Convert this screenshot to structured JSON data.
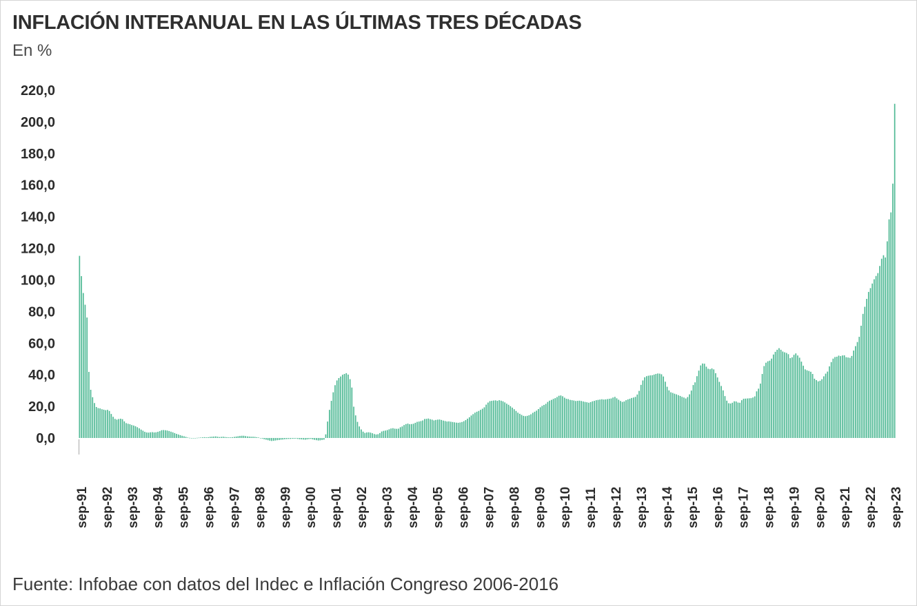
{
  "title": "INFLACIÓN INTERANUAL EN LAS ÚLTIMAS TRES DÉCADAS",
  "subtitle": "En %",
  "source": "Fuente: Infobae con datos del Indec e Inflación Congreso 2006-2016",
  "colors": {
    "bar": "#4db893",
    "axis": "#bfbfbf",
    "text": "#2b2b2b"
  },
  "chart_data": {
    "type": "bar",
    "xlabel": "",
    "ylabel": "",
    "ylim": [
      0,
      220
    ],
    "yticks": [
      "0,0",
      "20,0",
      "40,0",
      "60,0",
      "80,0",
      "100,0",
      "120,0",
      "140,0",
      "160,0",
      "180,0",
      "200,0",
      "220,0"
    ],
    "grid": false,
    "legend": "none",
    "xticks": [
      "sep-91",
      "sep-92",
      "sep-93",
      "sep-94",
      "sep-95",
      "sep-96",
      "sep-97",
      "sep-98",
      "sep-99",
      "sep-00",
      "sep-01",
      "sep-02",
      "sep-03",
      "sep-04",
      "sep-05",
      "sep-06",
      "sep-07",
      "sep-08",
      "sep-09",
      "sep-10",
      "sep-11",
      "sep-12",
      "sep-13",
      "sep-14",
      "sep-15",
      "sep-16",
      "sep-17",
      "sep-18",
      "sep-19",
      "sep-20",
      "sep-21",
      "sep-22",
      "sep-23"
    ],
    "series": [
      {
        "values": [
          115.2,
          102.4,
          91.7,
          84.3,
          76.2,
          41.8,
          30.5,
          25.8,
          22.1,
          19.6,
          18.9,
          18.7,
          18.2,
          17.9,
          17.6,
          17.8,
          17.1,
          15.2,
          13.4,
          12.1,
          11.6,
          12.0,
          12.2,
          11.9,
          10.5,
          9.4,
          9.0,
          8.7,
          8.2,
          7.9,
          7.4,
          6.8,
          6.1,
          5.3,
          4.6,
          3.9,
          3.5,
          3.4,
          3.6,
          3.7,
          3.5,
          3.6,
          3.9,
          4.3,
          4.9,
          5.0,
          4.9,
          4.7,
          4.4,
          4.0,
          3.6,
          3.1,
          2.6,
          2.2,
          1.8,
          1.4,
          1.1,
          0.7,
          0.3,
          0.1,
          -0.1,
          -0.2,
          -0.1,
          0.1,
          0.2,
          0.3,
          0.4,
          0.5,
          0.4,
          0.5,
          0.7,
          0.8,
          0.9,
          1.0,
          0.8,
          0.6,
          0.7,
          0.8,
          0.6,
          0.5,
          0.4,
          0.4,
          0.5,
          0.7,
          0.9,
          1.1,
          1.3,
          1.4,
          1.4,
          1.2,
          1.0,
          0.9,
          0.8,
          0.8,
          0.7,
          0.5,
          0.3,
          0.0,
          -0.4,
          -0.8,
          -1.1,
          -1.4,
          -1.7,
          -1.9,
          -1.8,
          -1.6,
          -1.4,
          -1.3,
          -1.1,
          -1.0,
          -0.8,
          -0.7,
          -0.6,
          -0.6,
          -0.5,
          -0.5,
          -0.4,
          -0.6,
          -0.8,
          -0.9,
          -1.0,
          -1.1,
          -0.9,
          -0.7,
          -0.6,
          -0.9,
          -1.2,
          -1.4,
          -1.6,
          -1.5,
          -1.3,
          -1.1,
          2.3,
          10.4,
          17.8,
          23.5,
          28.9,
          33.4,
          36.4,
          37.9,
          38.9,
          40.0,
          40.5,
          41.0,
          40.1,
          37.2,
          31.9,
          19.8,
          14.3,
          10.2,
          7.3,
          5.4,
          4.0,
          3.2,
          3.5,
          3.6,
          3.4,
          3.0,
          2.5,
          2.2,
          2.4,
          3.1,
          4.1,
          4.5,
          4.7,
          5.0,
          5.5,
          6.0,
          6.2,
          5.9,
          5.8,
          5.9,
          6.8,
          7.3,
          8.2,
          8.8,
          9.1,
          8.7,
          8.8,
          9.0,
          9.6,
          10.2,
          10.4,
          10.7,
          11.1,
          12.0,
          12.1,
          12.3,
          11.9,
          11.6,
          11.1,
          11.4,
          11.6,
          11.7,
          11.4,
          11.0,
          10.7,
          10.4,
          10.5,
          10.3,
          10.1,
          9.9,
          9.7,
          9.6,
          9.8,
          10.1,
          10.6,
          11.3,
          12.2,
          13.1,
          14.2,
          15.1,
          16.0,
          16.6,
          17.1,
          17.8,
          18.5,
          19.4,
          21.1,
          22.4,
          23.3,
          23.5,
          23.7,
          23.8,
          23.5,
          23.9,
          23.6,
          23.2,
          22.5,
          21.7,
          21.0,
          20.1,
          19.2,
          18.2,
          17.1,
          16.0,
          15.3,
          14.6,
          14.0,
          13.8,
          14.0,
          14.4,
          15.0,
          15.9,
          16.6,
          17.3,
          18.3,
          19.4,
          20.3,
          20.9,
          21.6,
          22.8,
          23.6,
          24.1,
          24.7,
          25.2,
          25.9,
          26.7,
          26.9,
          26.4,
          25.5,
          24.8,
          24.6,
          24.1,
          23.9,
          23.7,
          23.4,
          23.5,
          23.6,
          23.4,
          23.1,
          22.8,
          22.6,
          22.3,
          22.7,
          23.2,
          23.5,
          23.9,
          24.1,
          24.3,
          24.5,
          24.3,
          24.4,
          24.6,
          24.8,
          25.0,
          25.6,
          26.0,
          25.1,
          24.2,
          23.4,
          22.8,
          23.1,
          23.9,
          24.4,
          24.8,
          25.3,
          25.6,
          26.0,
          27.5,
          29.8,
          33.6,
          36.4,
          38.4,
          39.1,
          39.4,
          39.6,
          39.7,
          40.1,
          40.5,
          40.8,
          40.7,
          40.3,
          38.9,
          35.6,
          32.4,
          30.1,
          28.9,
          28.5,
          28.0,
          27.6,
          27.1,
          26.6,
          26.0,
          25.6,
          25.0,
          25.9,
          27.6,
          30.0,
          33.5,
          35.2,
          39.1,
          42.6,
          45.9,
          47.1,
          47.0,
          45.1,
          43.8,
          43.5,
          44.0,
          43.4,
          41.0,
          38.3,
          35.5,
          32.9,
          30.1,
          26.5,
          23.6,
          22.0,
          21.8,
          22.3,
          23.2,
          23.1,
          22.4,
          22.3,
          23.9,
          24.8,
          24.9,
          25.0,
          25.1,
          25.2,
          25.6,
          26.3,
          29.5,
          31.2,
          34.4,
          40.5,
          45.5,
          47.6,
          48.5,
          48.9,
          50.2,
          52.8,
          54.5,
          55.8,
          56.8,
          55.8,
          54.7,
          54.2,
          53.8,
          53.0,
          50.5,
          51.0,
          52.6,
          53.5,
          52.2,
          50.8,
          48.3,
          45.7,
          43.4,
          42.8,
          42.4,
          41.9,
          40.5,
          37.5,
          36.6,
          35.8,
          36.2,
          37.2,
          39.0,
          40.7,
          42.0,
          45.3,
          48.0,
          50.2,
          51.2,
          51.4,
          52.1,
          51.8,
          52.2,
          52.3,
          51.1,
          50.9,
          50.7,
          51.9,
          55.3,
          58.1,
          60.7,
          64.0,
          71.0,
          78.5,
          83.0,
          88.0,
          92.4,
          94.8,
          97.7,
          100.4,
          102.5,
          104.3,
          108.8,
          113.4,
          115.6,
          114.2,
          124.4,
          138.3,
          142.7,
          160.9,
          211.4
        ]
      }
    ]
  }
}
